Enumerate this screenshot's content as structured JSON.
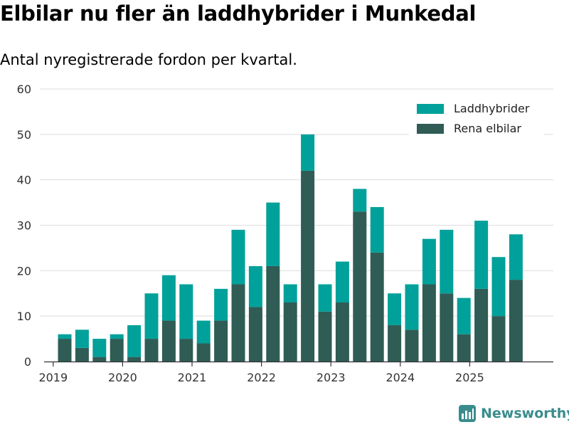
{
  "title": "Elbilar nu fler än laddhybrider i Munkedal",
  "subtitle": "Antal nyregistrerade fordon per kvartal.",
  "brand": "Newsworthy",
  "colors": {
    "phev": "#00a19a",
    "bev": "#2f5c55",
    "grid": "#dddddd",
    "axis": "#555555"
  },
  "chart_data": {
    "type": "bar",
    "stacked": true,
    "categories": [
      "2019Q1",
      "2019Q2",
      "2019Q3",
      "2019Q4",
      "2020Q1",
      "2020Q2",
      "2020Q3",
      "2020Q4",
      "2021Q1",
      "2021Q2",
      "2021Q3",
      "2021Q4",
      "2022Q1",
      "2022Q2",
      "2022Q3",
      "2022Q4",
      "2023Q1",
      "2023Q2",
      "2023Q3",
      "2023Q4",
      "2024Q1",
      "2024Q2",
      "2024Q3",
      "2024Q4",
      "2025Q1",
      "2025Q2",
      "2025Q3",
      "2025Q4"
    ],
    "series": [
      {
        "name": "Rena elbilar",
        "values": [
          5,
          3,
          1,
          5,
          1,
          5,
          9,
          5,
          4,
          9,
          17,
          12,
          21,
          13,
          42,
          11,
          13,
          33,
          24,
          8,
          7,
          17,
          15,
          6,
          16,
          10,
          18,
          0
        ]
      },
      {
        "name": "Laddhybrider",
        "values": [
          1,
          4,
          4,
          1,
          7,
          10,
          10,
          12,
          5,
          7,
          12,
          9,
          14,
          4,
          8,
          6,
          9,
          5,
          10,
          7,
          10,
          10,
          14,
          8,
          15,
          13,
          10,
          0
        ]
      }
    ],
    "x_tick_labels": [
      "2019",
      "2020",
      "2021",
      "2022",
      "2023",
      "2024",
      "2025"
    ],
    "y_ticks": [
      0,
      10,
      20,
      30,
      40,
      50,
      60
    ],
    "ylim": [
      0,
      60
    ],
    "legend": [
      "Laddhybrider",
      "Rena elbilar"
    ],
    "legend_position": "top-right"
  }
}
